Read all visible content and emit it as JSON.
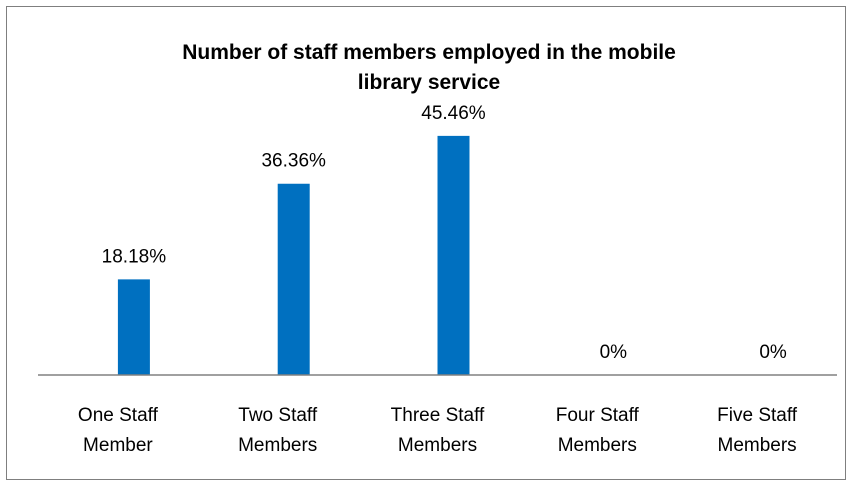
{
  "chart_data": {
    "type": "bar",
    "title_lines": [
      "Number of staff members employed in the mobile",
      "library service"
    ],
    "categories": [
      [
        "One Staff",
        "Member"
      ],
      [
        "Two Staff",
        "Members"
      ],
      [
        "Three Staff",
        "Members"
      ],
      [
        "Four Staff",
        "Members"
      ],
      [
        "Five Staff",
        "Members"
      ]
    ],
    "values": [
      18.18,
      36.36,
      45.46,
      0,
      0
    ],
    "data_labels": [
      "18.18%",
      "36.36%",
      "45.46%",
      "0%",
      "0%"
    ],
    "xlabel": "",
    "ylabel": "",
    "ylim": [
      0,
      50
    ],
    "grid": false,
    "legend": "none",
    "bar_color": "#0070C0"
  }
}
